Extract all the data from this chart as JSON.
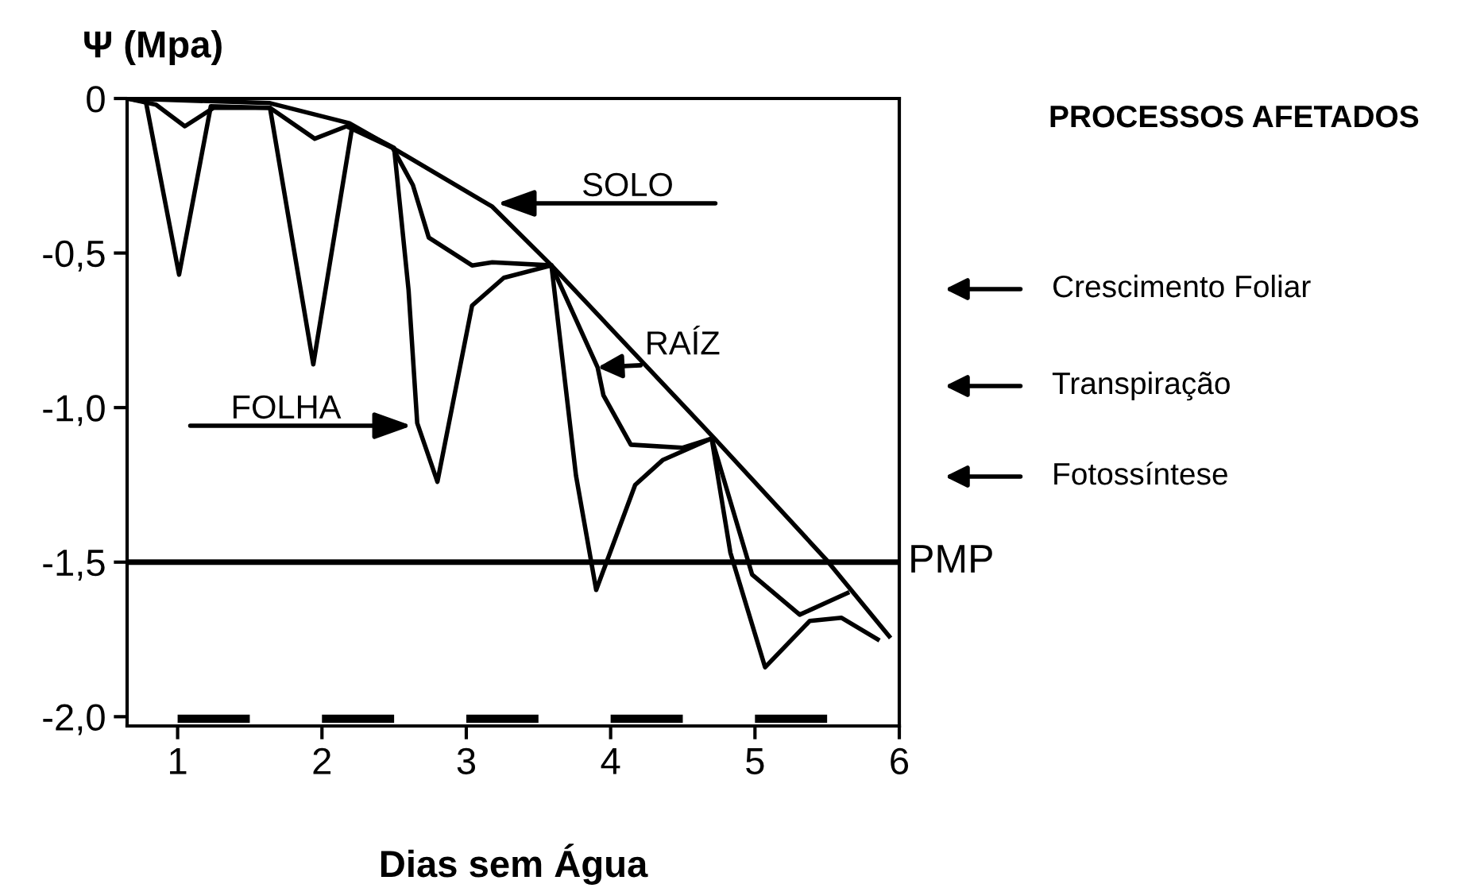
{
  "chart_data": {
    "type": "line",
    "xlabel": "Dias sem Água",
    "ylabel": "Ψ (Mpa)",
    "xlim": [
      0.65,
      6
    ],
    "ylim": [
      -2.03,
      0
    ],
    "xticks": [
      1,
      2,
      3,
      4,
      5,
      6
    ],
    "yticks": [
      0,
      {
        "value": -0.5,
        "label": "-0,5"
      },
      {
        "value": -1.0,
        "label": "-1,0"
      },
      {
        "value": -1.5,
        "label": "-1,5"
      },
      {
        "value": -2.0,
        "label": "-2,0"
      }
    ],
    "grid": false,
    "marker": "none",
    "line_style": "solid",
    "series": [
      {
        "color": "#000000",
        "x": [
          0.65,
          1.64,
          2.19,
          2.49,
          3.18,
          3.59,
          4.72,
          5.49,
          5.93
        ],
        "values": [
          0,
          -0.015,
          -0.08,
          -0.16,
          -0.35,
          -0.54,
          -1.1,
          -1.49,
          -1.74
        ]
      },
      {
        "color": "#000000",
        "x": [
          0.65,
          0.85,
          1.05,
          1.25,
          1.64,
          1.95,
          2.17,
          2.49,
          2.63,
          2.74,
          3.04,
          3.18,
          3.59,
          3.91,
          3.95,
          4.14,
          4.5,
          4.7,
          4.98,
          5.31,
          5.64
        ],
        "values": [
          0,
          -0.02,
          -0.09,
          -0.03,
          -0.03,
          -0.13,
          -0.09,
          -0.16,
          -0.28,
          -0.45,
          -0.54,
          -0.53,
          -0.54,
          -0.87,
          -0.96,
          -1.12,
          -1.13,
          -1.1,
          -1.54,
          -1.67,
          -1.6
        ]
      },
      {
        "color": "#000000",
        "x": [
          0.65,
          0.78,
          1.01,
          1.23,
          1.64,
          1.94,
          2.21,
          2.5,
          2.6,
          2.66,
          2.8,
          3.04,
          3.26,
          3.59,
          3.76,
          3.9,
          4.17,
          4.36,
          4.7,
          4.83,
          5.07,
          5.38,
          5.6,
          5.85
        ],
        "values": [
          0,
          -0.01,
          -0.57,
          -0.025,
          -0.03,
          -0.86,
          -0.09,
          -0.16,
          -0.62,
          -1.05,
          -1.24,
          -0.67,
          -0.58,
          -0.54,
          -1.22,
          -1.59,
          -1.25,
          -1.17,
          -1.1,
          -1.47,
          -1.84,
          -1.69,
          -1.68,
          -1.75
        ]
      }
    ],
    "ref_lines": [
      {
        "axis": "y",
        "value": -1.5,
        "label": "PMP",
        "color": "#000000",
        "line_style": "solid"
      }
    ],
    "annotations": [
      "SOLO",
      {
        "text": "RAÍZ",
        "x": 3.91,
        "y": -0.87
      },
      "FOLHA",
      "PROCESSOS AFETADOS",
      "Crescimento Foliar",
      "Transpiração",
      "Fotossíntese"
    ]
  }
}
